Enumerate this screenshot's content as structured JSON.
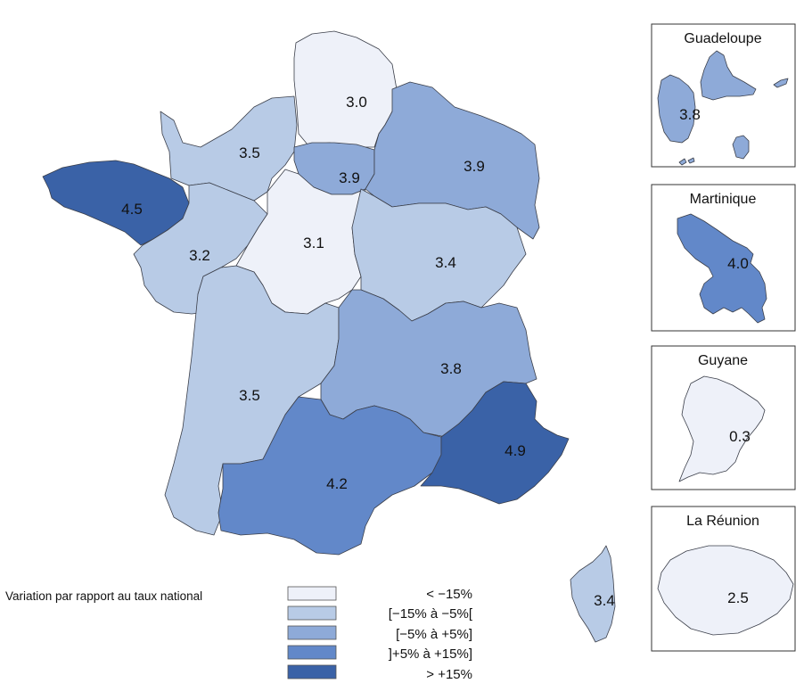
{
  "palette": {
    "c1": "#eef1f9",
    "c2": "#b8cbe6",
    "c3": "#8eaad8",
    "c4": "#6288c9",
    "c5": "#3a62a7"
  },
  "regions": [
    {
      "id": "bretagne",
      "value": "4.5",
      "cls": "c5"
    },
    {
      "id": "normandie",
      "value": "3.5",
      "cls": "c2"
    },
    {
      "id": "hauts-de-france",
      "value": "3.0",
      "cls": "c1"
    },
    {
      "id": "ile-de-france",
      "value": "3.9",
      "cls": "c3"
    },
    {
      "id": "grand-est",
      "value": "3.9",
      "cls": "c3"
    },
    {
      "id": "pays-de-la-loire",
      "value": "3.2",
      "cls": "c2"
    },
    {
      "id": "centre-val-de-loire",
      "value": "3.1",
      "cls": "c1"
    },
    {
      "id": "bourgogne-franche-comte",
      "value": "3.4",
      "cls": "c2"
    },
    {
      "id": "nouvelle-aquitaine",
      "value": "3.5",
      "cls": "c2"
    },
    {
      "id": "auvergne-rhone-alpes",
      "value": "3.8",
      "cls": "c3"
    },
    {
      "id": "occitanie",
      "value": "4.2",
      "cls": "c4"
    },
    {
      "id": "paca",
      "value": "4.9",
      "cls": "c5"
    },
    {
      "id": "corse",
      "value": "3.4",
      "cls": "c2"
    }
  ],
  "insets": [
    {
      "name": "Guadeloupe",
      "value": "3.8",
      "cls": "c3"
    },
    {
      "name": "Martinique",
      "value": "4.0",
      "cls": "c4"
    },
    {
      "name": "Guyane",
      "value": "0.3",
      "cls": "c1"
    },
    {
      "name": "La Réunion",
      "value": "2.5",
      "cls": "c1"
    }
  ],
  "legend": {
    "title": "Variation par rapport au taux national",
    "items": [
      {
        "label": "< −15%",
        "cls": "c1"
      },
      {
        "label": "[−15% à −5%[",
        "cls": "c2"
      },
      {
        "label": "[−5% à +5%]",
        "cls": "c3"
      },
      {
        "label": "]+5% à +15%]",
        "cls": "c4"
      },
      {
        "label": "> +15%",
        "cls": "c5"
      }
    ]
  }
}
